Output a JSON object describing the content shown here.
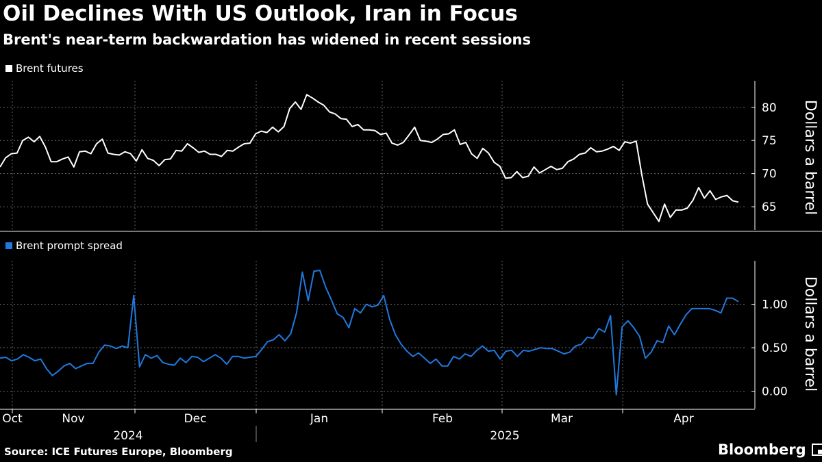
{
  "title": "Oil Declines With US Outlook, Iran in Focus",
  "subtitle": "Brent's near-term backwardation has widened in recent sessions",
  "source": "Source: ICE Futures Europe, Bloomberg",
  "brand": "Bloomberg",
  "colors": {
    "background": "#000000",
    "brent": "#ffffff",
    "spread": "#1f7ae0",
    "grid": "#666666"
  },
  "chart_data": [
    {
      "type": "line",
      "legend": "Brent futures",
      "ylabel": "Dollars a barrel",
      "ylim": [
        61.5,
        84
      ],
      "yticks": [
        65,
        70,
        75,
        80
      ],
      "grid": true,
      "legend_position": "top-left",
      "series": [
        {
          "name": "Brent futures",
          "values": [
            71.0,
            72.4,
            73.0,
            73.1,
            75.0,
            75.5,
            74.8,
            75.6,
            74.0,
            71.8,
            71.8,
            72.2,
            72.5,
            71.0,
            73.3,
            73.4,
            73.0,
            74.5,
            75.2,
            73.1,
            72.9,
            72.8,
            73.3,
            73.0,
            71.9,
            73.6,
            72.3,
            72.0,
            71.2,
            72.1,
            72.2,
            73.5,
            73.4,
            74.5,
            73.9,
            73.2,
            73.4,
            72.9,
            72.9,
            72.6,
            73.5,
            73.4,
            74.0,
            74.5,
            74.6,
            76.0,
            76.4,
            76.2,
            77.0,
            76.3,
            77.1,
            79.8,
            80.8,
            79.7,
            81.9,
            81.4,
            80.8,
            80.3,
            79.3,
            79.0,
            78.3,
            78.2,
            77.1,
            77.4,
            76.6,
            76.6,
            76.5,
            75.9,
            76.1,
            74.6,
            74.3,
            74.7,
            75.8,
            77.0,
            75.0,
            74.9,
            74.7,
            75.2,
            75.9,
            76.0,
            76.6,
            74.4,
            74.7,
            73.0,
            72.3,
            73.8,
            73.1,
            71.7,
            71.1,
            69.3,
            69.4,
            70.3,
            69.4,
            69.6,
            71.0,
            70.1,
            70.6,
            71.1,
            70.6,
            70.8,
            71.8,
            72.2,
            72.9,
            73.1,
            73.9,
            73.3,
            73.4,
            73.7,
            74.1,
            73.5,
            74.8,
            74.6,
            74.9,
            69.8,
            65.4,
            64.1,
            62.8,
            65.4,
            63.4,
            64.5,
            64.5,
            64.8,
            66.0,
            67.9,
            66.3,
            67.4,
            66.1,
            66.5,
            66.7,
            65.9,
            65.7
          ]
        }
      ],
      "x_axis": {
        "months": [
          "Oct",
          "Nov",
          "Dec",
          "Jan",
          "Feb",
          "Mar",
          "Apr"
        ],
        "years": [
          "2024",
          "2025"
        ]
      }
    },
    {
      "type": "line",
      "legend": "Brent prompt spread",
      "ylabel": "Dollars a barrel",
      "ylim": [
        -0.2,
        1.5
      ],
      "yticks": [
        "0.00",
        "0.50",
        "1.00"
      ],
      "grid": true,
      "legend_position": "top-left",
      "series": [
        {
          "name": "Brent prompt spread",
          "values": [
            0.38,
            0.39,
            0.35,
            0.37,
            0.42,
            0.39,
            0.35,
            0.37,
            0.26,
            0.18,
            0.23,
            0.29,
            0.32,
            0.26,
            0.29,
            0.32,
            0.32,
            0.45,
            0.53,
            0.52,
            0.49,
            0.52,
            0.5,
            1.1,
            0.28,
            0.42,
            0.38,
            0.41,
            0.33,
            0.31,
            0.3,
            0.38,
            0.33,
            0.4,
            0.39,
            0.34,
            0.38,
            0.42,
            0.38,
            0.31,
            0.4,
            0.4,
            0.38,
            0.39,
            0.4,
            0.48,
            0.57,
            0.59,
            0.65,
            0.58,
            0.66,
            0.9,
            1.37,
            1.04,
            1.38,
            1.39,
            1.2,
            1.05,
            0.89,
            0.85,
            0.73,
            0.95,
            0.9,
            1.0,
            0.97,
            0.99,
            1.1,
            0.83,
            0.65,
            0.54,
            0.46,
            0.4,
            0.44,
            0.38,
            0.32,
            0.37,
            0.29,
            0.29,
            0.4,
            0.37,
            0.43,
            0.4,
            0.47,
            0.52,
            0.46,
            0.47,
            0.37,
            0.46,
            0.47,
            0.4,
            0.47,
            0.46,
            0.48,
            0.5,
            0.49,
            0.49,
            0.46,
            0.43,
            0.45,
            0.52,
            0.54,
            0.62,
            0.61,
            0.72,
            0.68,
            0.87,
            -0.04,
            0.74,
            0.81,
            0.73,
            0.63,
            0.38,
            0.45,
            0.58,
            0.56,
            0.75,
            0.65,
            0.77,
            0.88,
            0.95,
            0.95,
            0.95,
            0.95,
            0.93,
            0.9,
            1.07,
            1.07,
            1.03
          ]
        }
      ]
    }
  ]
}
